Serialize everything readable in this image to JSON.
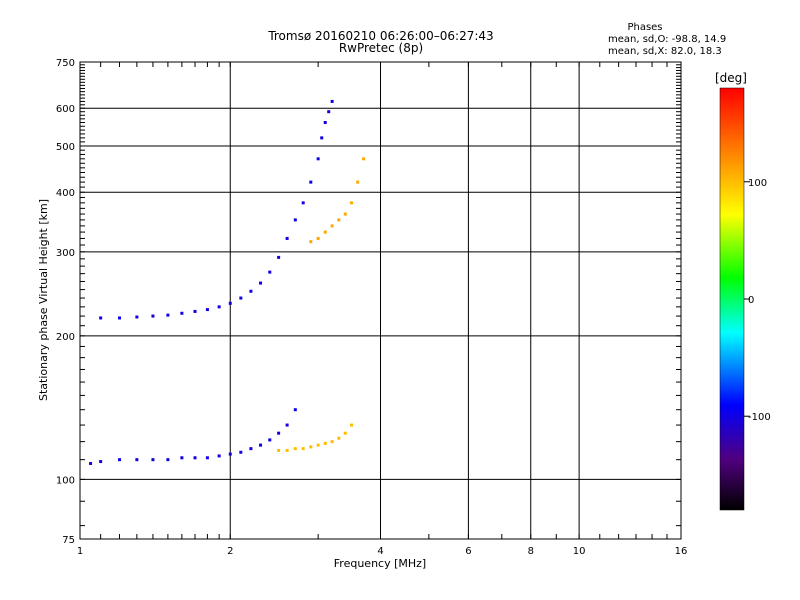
{
  "chart_data": {
    "type": "scatter",
    "title": "Tromsø 20160210 06:26:00–06:27:43",
    "subtitle": "RwPretec (8p)",
    "xlabel": "Frequency [MHz]",
    "ylabel": "Stationary phase Virtual Height [km]",
    "x_scale": "log",
    "y_scale": "log",
    "xlim": [
      1,
      16
    ],
    "ylim": [
      75,
      750
    ],
    "x_ticks": [
      1,
      2,
      4,
      6,
      8,
      10,
      16
    ],
    "y_ticks": [
      75,
      100,
      200,
      300,
      400,
      500,
      600,
      750
    ],
    "grid": true,
    "phase_info": {
      "title": "Phases",
      "line_o": "mean, sd,O: -98.8, 14.9",
      "line_x": "mean, sd,X:  82.0, 18.3"
    },
    "colorbar": {
      "label": "[deg]",
      "range": [
        -180,
        180
      ],
      "ticks": [
        100,
        0,
        -100
      ]
    },
    "series": [
      {
        "trace": "O-mode F-layer",
        "phase_deg": -100,
        "x": [
          1.1,
          1.2,
          1.3,
          1.4,
          1.5,
          1.6,
          1.7,
          1.8,
          1.9,
          2.0,
          2.1,
          2.2,
          2.3,
          2.4,
          2.5,
          2.6,
          2.7,
          2.8,
          2.9,
          3.0,
          3.05,
          3.1,
          3.15,
          3.2
        ],
        "y": [
          218,
          218,
          219,
          220,
          221,
          223,
          225,
          227,
          230,
          234,
          240,
          248,
          258,
          272,
          292,
          320,
          350,
          380,
          420,
          470,
          520,
          560,
          590,
          620
        ]
      },
      {
        "trace": "X-mode F-layer",
        "phase_deg": 110,
        "x": [
          2.9,
          3.0,
          3.1,
          3.2,
          3.3,
          3.4,
          3.5,
          3.6,
          3.7
        ],
        "y": [
          315,
          320,
          330,
          340,
          350,
          360,
          380,
          420,
          470
        ]
      },
      {
        "trace": "O-mode lower trace",
        "phase_deg": -100,
        "x": [
          1.05,
          1.1,
          1.2,
          1.3,
          1.4,
          1.5,
          1.6,
          1.7,
          1.8,
          1.9,
          2.0,
          2.1,
          2.2,
          2.3,
          2.4,
          2.5,
          2.6,
          2.7
        ],
        "y": [
          108,
          109,
          110,
          110,
          110,
          110,
          111,
          111,
          111,
          112,
          113,
          114,
          116,
          118,
          121,
          125,
          130,
          140
        ]
      },
      {
        "trace": "X-mode lower trace",
        "phase_deg": 100,
        "x": [
          2.5,
          2.6,
          2.7,
          2.8,
          2.9,
          3.0,
          3.1,
          3.2,
          3.3,
          3.4,
          3.5
        ],
        "y": [
          115,
          115,
          116,
          116,
          117,
          118,
          119,
          120,
          122,
          125,
          130
        ]
      }
    ]
  }
}
